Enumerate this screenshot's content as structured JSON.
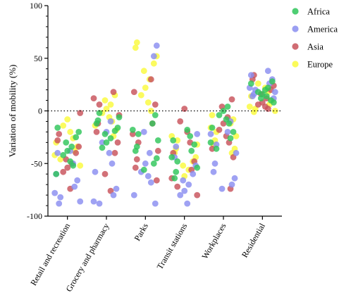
{
  "chart_data": {
    "type": "scatter",
    "title": "",
    "xlabel": "",
    "ylabel": "Variation of mobility (%)",
    "ylim": [
      -100,
      100
    ],
    "yticks": [
      100,
      50,
      0,
      -50,
      -100
    ],
    "reference_line": {
      "y": 0,
      "style": "dotted"
    },
    "grid": false,
    "legend_position": "top-right",
    "categories": [
      "Retail and recreation",
      "Grocery and pharmacy",
      "Parks",
      "Transit stations",
      "Workplaces",
      "Residential"
    ],
    "series": [
      {
        "name": "Africa",
        "color": "#2fc65a",
        "values": [
          [
            -16,
            -20,
            -25,
            -30,
            -34,
            -38,
            -42,
            -48,
            -52,
            -60
          ],
          [
            -2,
            -6,
            -9,
            -12,
            -16,
            -19,
            -22,
            -26,
            -30,
            -35
          ],
          [
            -4,
            -12,
            -18,
            -22,
            -28,
            -34,
            -38,
            -45,
            -50,
            -56
          ],
          [
            -18,
            -24,
            -28,
            -32,
            -38,
            -44,
            -48,
            -54,
            -58,
            -64
          ],
          [
            4,
            0,
            -4,
            -8,
            -12,
            -16,
            -20,
            -26,
            -30,
            -36
          ],
          [
            8,
            10,
            12,
            14,
            16,
            18,
            20,
            22,
            26,
            28
          ]
        ]
      },
      {
        "name": "America",
        "color": "#8a8ef0",
        "values": [
          [
            -38,
            -50,
            -60,
            -66,
            -72,
            -78,
            -82,
            -86,
            -88,
            -40
          ],
          [
            -10,
            -20,
            -30,
            -40,
            -50,
            -58,
            -74,
            -80,
            -86,
            -88
          ],
          [
            62,
            52,
            -20,
            -40,
            -50,
            -58,
            -62,
            -68,
            -80,
            -88
          ],
          [
            -22,
            -34,
            -44,
            -52,
            -60,
            -66,
            -70,
            -76,
            -80,
            -88
          ],
          [
            -10,
            -22,
            -32,
            -40,
            -50,
            -58,
            -64,
            -70,
            -74,
            -20
          ],
          [
            38,
            34,
            30,
            26,
            22,
            20,
            18,
            16,
            14,
            12
          ]
        ]
      },
      {
        "name": "Asia",
        "color": "#c8525a",
        "values": [
          [
            -2,
            -22,
            -28,
            -34,
            -40,
            -46,
            -50,
            -54,
            -58,
            -74
          ],
          [
            18,
            12,
            6,
            -4,
            -12,
            -20,
            -30,
            -40,
            -60,
            -76
          ],
          [
            30,
            18,
            6,
            -12,
            -22,
            -30,
            -38,
            -46,
            -54,
            -66
          ],
          [
            2,
            -10,
            -20,
            -30,
            -40,
            -48,
            -56,
            -64,
            -72,
            -80
          ],
          [
            11,
            4,
            -6,
            -12,
            -18,
            -24,
            -30,
            -36,
            -44,
            -74
          ],
          [
            34,
            30,
            24,
            20,
            16,
            12,
            8,
            6,
            4,
            2
          ]
        ]
      },
      {
        "name": "Europe",
        "color": "#fafa3c",
        "values": [
          [
            -8,
            -14,
            -20,
            -26,
            -30,
            -34,
            -38,
            -42,
            -46,
            -52
          ],
          [
            15,
            10,
            6,
            2,
            -2,
            -6,
            -10,
            -14,
            -18,
            -24
          ],
          [
            65,
            60,
            52,
            45,
            38,
            30,
            22,
            15,
            8,
            0
          ],
          [
            -24,
            -28,
            -32,
            -36,
            -40,
            -44,
            -48,
            -52,
            -56,
            -62
          ],
          [
            -4,
            -8,
            -12,
            -16,
            -20,
            -24,
            -28,
            -32,
            -36,
            -40
          ],
          [
            26,
            22,
            18,
            14,
            10,
            6,
            4,
            2,
            0,
            -1
          ]
        ]
      }
    ]
  }
}
